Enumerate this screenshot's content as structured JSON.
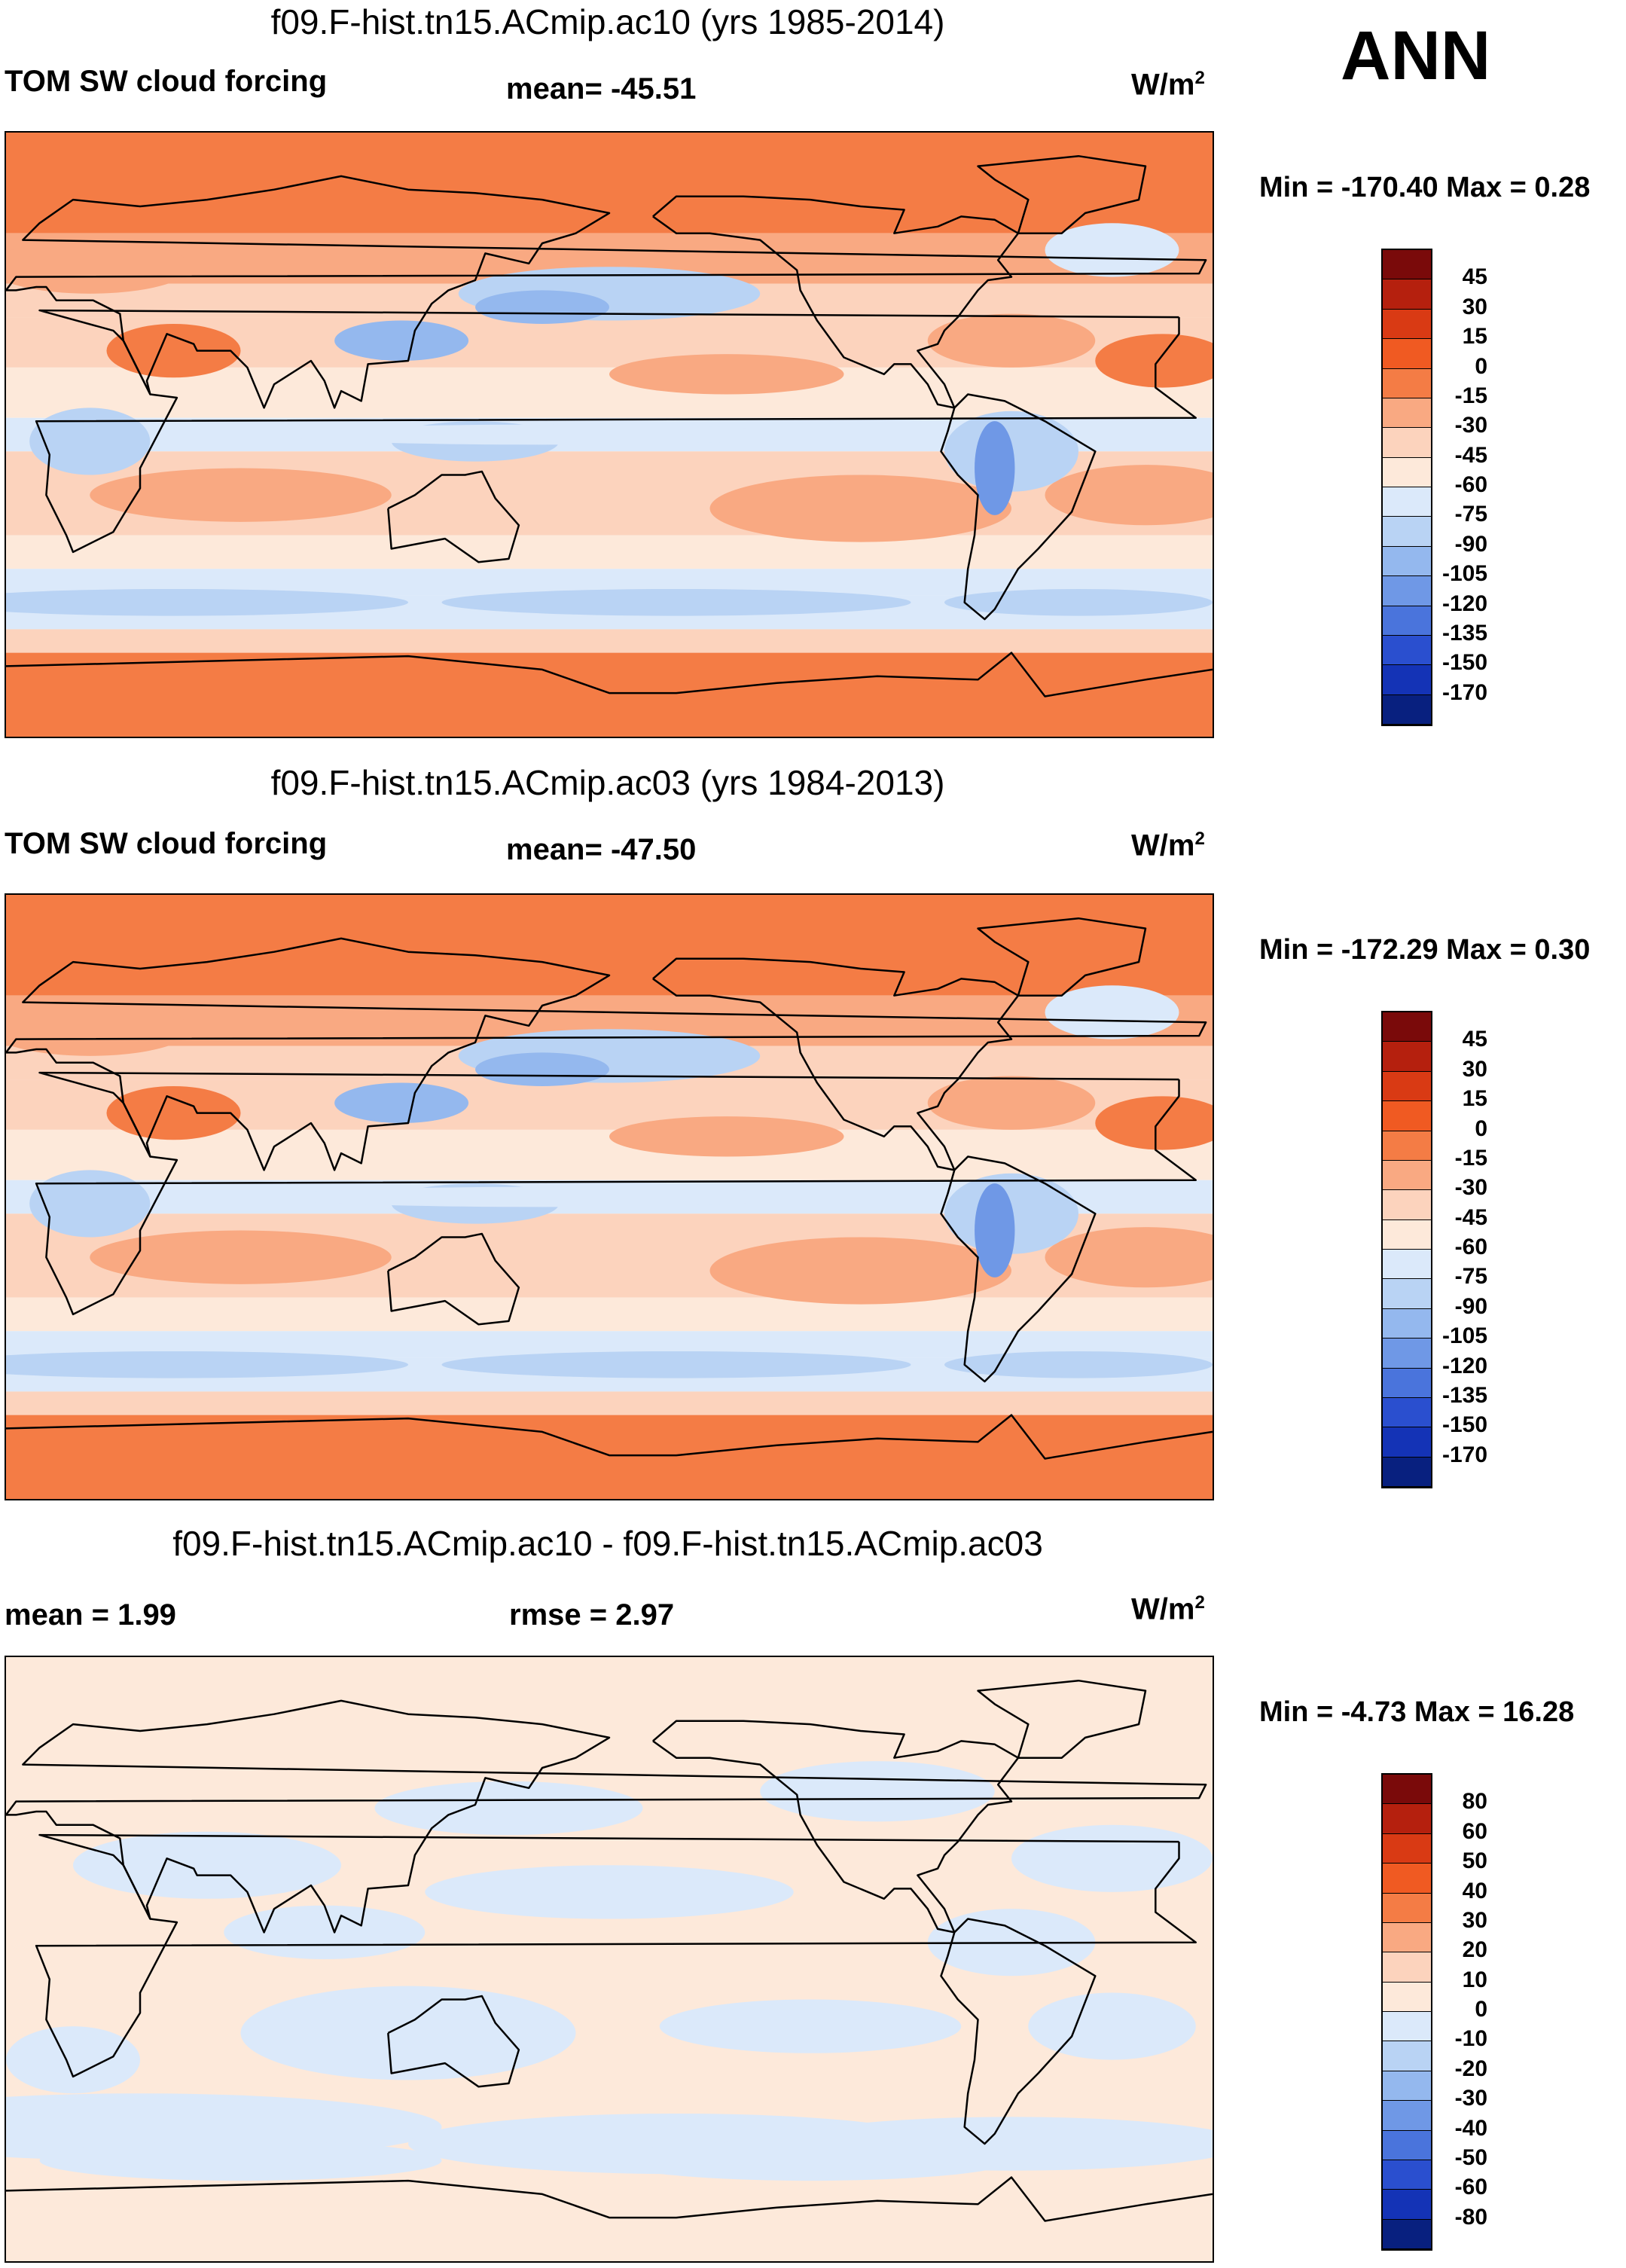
{
  "season": "ANN",
  "palette_top": [
    "#7a0a0a",
    "#b5200e",
    "#d93a14",
    "#f05a22",
    "#f47c45",
    "#f9a982",
    "#fcd3bd",
    "#fde9da",
    "#dbe9fa",
    "#b9d3f4",
    "#94b8ee",
    "#6f98e6",
    "#4a74dc",
    "#2a4fcf",
    "#1433b6",
    "#08207f"
  ],
  "palette_diff": [
    "#7a0a0a",
    "#b5200e",
    "#d93a14",
    "#f05a22",
    "#f47c45",
    "#f9a982",
    "#fcd3bd",
    "#fde9da",
    "#dbe9fa",
    "#b9d3f4",
    "#94b8ee",
    "#6f98e6",
    "#4a74dc",
    "#2a4fcf",
    "#1433b6",
    "#08207f"
  ],
  "chart_data": [
    {
      "type": "heatmap",
      "title": "f09.F-hist.tn15.ACmip.ac10 (yrs 1985-2014)",
      "variable": "TOM SW cloud forcing",
      "mean_label": "mean= -45.51",
      "units": "W/m",
      "units_exp": "2",
      "min_max": "Min = -170.40 Max =   0.28",
      "colorbar_levels": [
        "45",
        "30",
        "15",
        "0",
        "-15",
        "-30",
        "-45",
        "-60",
        "-75",
        "-90",
        "-105",
        "-120",
        "-135",
        "-150",
        "-170"
      ]
    },
    {
      "type": "heatmap",
      "title": "f09.F-hist.tn15.ACmip.ac03 (yrs 1984-2013)",
      "variable": "TOM SW cloud forcing",
      "mean_label": "mean= -47.50",
      "units": "W/m",
      "units_exp": "2",
      "min_max": "Min = -172.29 Max =   0.30",
      "colorbar_levels": [
        "45",
        "30",
        "15",
        "0",
        "-15",
        "-30",
        "-45",
        "-60",
        "-75",
        "-90",
        "-105",
        "-120",
        "-135",
        "-150",
        "-170"
      ]
    },
    {
      "type": "heatmap",
      "title": "f09.F-hist.tn15.ACmip.ac10 - f09.F-hist.tn15.ACmip.ac03",
      "mean_label": "mean =   1.99",
      "rmse_label": "rmse =   2.97",
      "units": "W/m",
      "units_exp": "2",
      "min_max": "Min =  -4.73 Max =  16.28",
      "colorbar_levels": [
        "80",
        "60",
        "50",
        "40",
        "30",
        "20",
        "10",
        "0",
        "-10",
        "-20",
        "-30",
        "-40",
        "-50",
        "-60",
        "-80"
      ]
    }
  ]
}
